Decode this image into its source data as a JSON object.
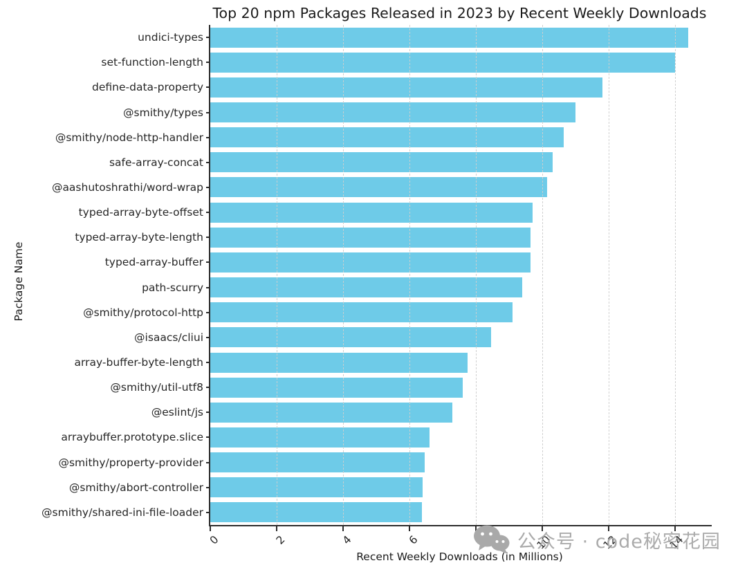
{
  "chart_data": {
    "type": "bar",
    "orientation": "horizontal",
    "title": "Top 20 npm Packages Released in 2023 by Recent Weekly Downloads",
    "xlabel": "Recent Weekly Downloads (in Millions)",
    "ylabel": "Package Name",
    "categories": [
      "undici-types",
      "set-function-length",
      "define-data-property",
      "@smithy/types",
      "@smithy/node-http-handler",
      "safe-array-concat",
      "@aashutoshrathi/word-wrap",
      "typed-array-byte-offset",
      "typed-array-byte-length",
      "typed-array-buffer",
      "path-scurry",
      "@smithy/protocol-http",
      "@isaacs/cliui",
      "array-buffer-byte-length",
      "@smithy/util-utf8",
      "@eslint/js",
      "arraybuffer.prototype.slice",
      "@smithy/property-provider",
      "@smithy/abort-controller",
      "@smithy/shared-ini-file-loader"
    ],
    "values": [
      14.4,
      14.0,
      11.8,
      11.0,
      10.65,
      10.3,
      10.15,
      9.7,
      9.65,
      9.65,
      9.4,
      9.1,
      8.45,
      7.75,
      7.6,
      7.3,
      6.6,
      6.45,
      6.4,
      6.38
    ],
    "xticks": [
      0,
      2,
      4,
      6,
      8,
      10,
      12,
      14
    ],
    "xlim": [
      0,
      15.1
    ],
    "grid": "vertical-dashed-above-bars",
    "legend": "none",
    "bar_color": "#6ecbe8",
    "grid_color": "#cdcdcd",
    "spine_color": "#2b2b2b",
    "text_color": "#262626"
  },
  "watermark": {
    "icon": "wechat-icon",
    "text": "公众号 · code秘密花园",
    "color": "#ababab"
  }
}
